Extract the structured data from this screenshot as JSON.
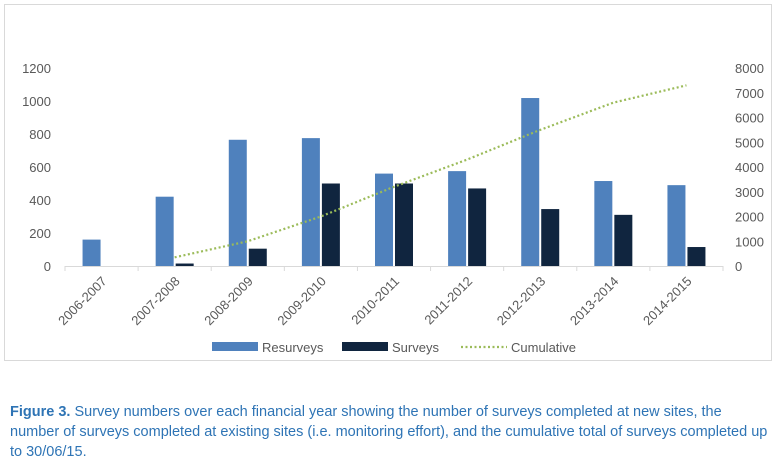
{
  "chart_data": {
    "type": "bar",
    "categories": [
      "2006-2007",
      "2007-2008",
      "2008-2009",
      "2009-2010",
      "2010-2011",
      "2011-2012",
      "2012-2013",
      "2013-2014",
      "2014-2015"
    ],
    "series": [
      {
        "name": "Resurveys",
        "kind": "bar",
        "axis": "left",
        "color": "#4f81bd",
        "values": [
          160,
          420,
          765,
          775,
          560,
          575,
          1018,
          515,
          490
        ]
      },
      {
        "name": "Surveys",
        "kind": "bar",
        "axis": "left",
        "color": "#10253f",
        "values": [
          0,
          15,
          105,
          500,
          500,
          470,
          345,
          310,
          115
        ]
      },
      {
        "name": "Cumulative",
        "kind": "line",
        "style": "dotted",
        "axis": "right",
        "color": "#9bbb59",
        "values": [
          null,
          350,
          1000,
          2000,
          3200,
          4300,
          5500,
          6600,
          7300
        ]
      }
    ],
    "y_left": {
      "min": 0,
      "max": 1200,
      "ticks": [
        0,
        200,
        400,
        600,
        800,
        1000,
        1200
      ]
    },
    "y_right": {
      "min": 0,
      "max": 8000,
      "ticks": [
        0,
        1000,
        2000,
        3000,
        4000,
        5000,
        6000,
        7000,
        8000
      ]
    },
    "title": "",
    "xlabel": "",
    "ylabel": "",
    "grid": false,
    "legend": "bottom"
  },
  "caption": {
    "label": "Figure 3.",
    "text": " Survey numbers over each financial year showing the number of surveys completed at new sites, the number of surveys completed at existing sites (i.e. monitoring effort), and the cumulative total of surveys completed up to 30/06/15."
  }
}
